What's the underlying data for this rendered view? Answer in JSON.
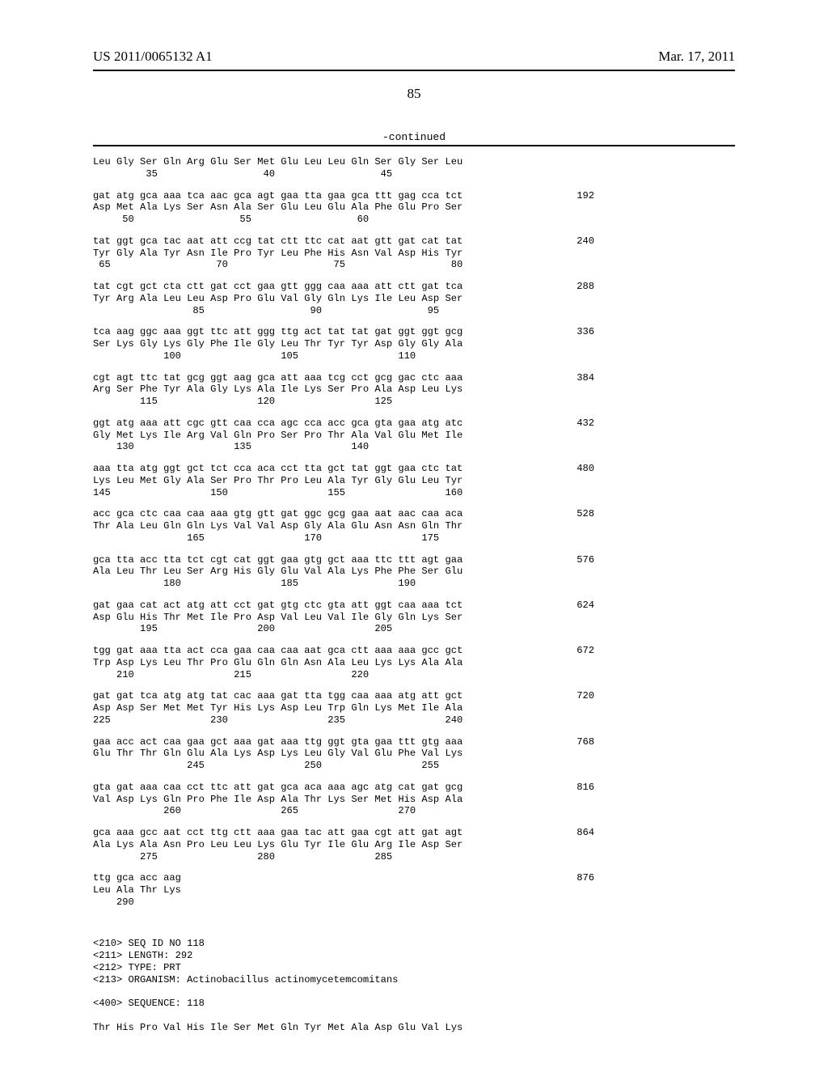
{
  "header": {
    "publication_number": "US 2011/0065132 A1",
    "date": "Mar. 17, 2011"
  },
  "page_number": "85",
  "continued_label": "-continued",
  "sequence_rows": [
    {
      "nuc": "",
      "prot": "Leu Gly Ser Gln Arg Glu Ser Met Glu Leu Leu Gln Ser Gly Ser Leu",
      "pos": "         35                  40                  45",
      "count": ""
    },
    {
      "nuc": "gat atg gca aaa tca aac gca agt gaa tta gaa gca ttt gag cca tct",
      "prot": "Asp Met Ala Lys Ser Asn Ala Ser Glu Leu Glu Ala Phe Glu Pro Ser",
      "pos": "     50                  55                  60",
      "count": "192"
    },
    {
      "nuc": "tat ggt gca tac aat att ccg tat ctt ttc cat aat gtt gat cat tat",
      "prot": "Tyr Gly Ala Tyr Asn Ile Pro Tyr Leu Phe His Asn Val Asp His Tyr",
      "pos": " 65                  70                  75                  80",
      "count": "240"
    },
    {
      "nuc": "tat cgt gct cta ctt gat cct gaa gtt ggg caa aaa att ctt gat tca",
      "prot": "Tyr Arg Ala Leu Leu Asp Pro Glu Val Gly Gln Lys Ile Leu Asp Ser",
      "pos": "                 85                  90                  95",
      "count": "288"
    },
    {
      "nuc": "tca aag ggc aaa ggt ttc att ggg ttg act tat tat gat ggt ggt gcg",
      "prot": "Ser Lys Gly Lys Gly Phe Ile Gly Leu Thr Tyr Tyr Asp Gly Gly Ala",
      "pos": "            100                 105                 110",
      "count": "336"
    },
    {
      "nuc": "cgt agt ttc tat gcg ggt aag gca att aaa tcg cct gcg gac ctc aaa",
      "prot": "Arg Ser Phe Tyr Ala Gly Lys Ala Ile Lys Ser Pro Ala Asp Leu Lys",
      "pos": "        115                 120                 125",
      "count": "384"
    },
    {
      "nuc": "ggt atg aaa att cgc gtt caa cca agc cca acc gca gta gaa atg atc",
      "prot": "Gly Met Lys Ile Arg Val Gln Pro Ser Pro Thr Ala Val Glu Met Ile",
      "pos": "    130                 135                 140",
      "count": "432"
    },
    {
      "nuc": "aaa tta atg ggt gct tct cca aca cct tta gct tat ggt gaa ctc tat",
      "prot": "Lys Leu Met Gly Ala Ser Pro Thr Pro Leu Ala Tyr Gly Glu Leu Tyr",
      "pos": "145                 150                 155                 160",
      "count": "480"
    },
    {
      "nuc": "acc gca ctc caa caa aaa gtg gtt gat ggc gcg gaa aat aac caa aca",
      "prot": "Thr Ala Leu Gln Gln Lys Val Val Asp Gly Ala Glu Asn Asn Gln Thr",
      "pos": "                165                 170                 175",
      "count": "528"
    },
    {
      "nuc": "gca tta acc tta tct cgt cat ggt gaa gtg gct aaa ttc ttt agt gaa",
      "prot": "Ala Leu Thr Leu Ser Arg His Gly Glu Val Ala Lys Phe Phe Ser Glu",
      "pos": "            180                 185                 190",
      "count": "576"
    },
    {
      "nuc": "gat gaa cat act atg att cct gat gtg ctc gta att ggt caa aaa tct",
      "prot": "Asp Glu His Thr Met Ile Pro Asp Val Leu Val Ile Gly Gln Lys Ser",
      "pos": "        195                 200                 205",
      "count": "624"
    },
    {
      "nuc": "tgg gat aaa tta act cca gaa caa caa aat gca ctt aaa aaa gcc gct",
      "prot": "Trp Asp Lys Leu Thr Pro Glu Gln Gln Asn Ala Leu Lys Lys Ala Ala",
      "pos": "    210                 215                 220",
      "count": "672"
    },
    {
      "nuc": "gat gat tca atg atg tat cac aaa gat tta tgg caa aaa atg att gct",
      "prot": "Asp Asp Ser Met Met Tyr His Lys Asp Leu Trp Gln Lys Met Ile Ala",
      "pos": "225                 230                 235                 240",
      "count": "720"
    },
    {
      "nuc": "gaa acc act caa gaa gct aaa gat aaa ttg ggt gta gaa ttt gtg aaa",
      "prot": "Glu Thr Thr Gln Glu Ala Lys Asp Lys Leu Gly Val Glu Phe Val Lys",
      "pos": "                245                 250                 255",
      "count": "768"
    },
    {
      "nuc": "gta gat aaa caa cct ttc att gat gca aca aaa agc atg cat gat gcg",
      "prot": "Val Asp Lys Gln Pro Phe Ile Asp Ala Thr Lys Ser Met His Asp Ala",
      "pos": "            260                 265                 270",
      "count": "816"
    },
    {
      "nuc": "gca aaa gcc aat cct ttg ctt aaa gaa tac att gaa cgt att gat agt",
      "prot": "Ala Lys Ala Asn Pro Leu Leu Lys Glu Tyr Ile Glu Arg Ile Asp Ser",
      "pos": "        275                 280                 285",
      "count": "864"
    },
    {
      "nuc": "ttg gca acc aag",
      "prot": "Leu Ala Thr Lys",
      "pos": "    290",
      "count": "876"
    }
  ],
  "meta": {
    "seq_id": "<210> SEQ ID NO 118",
    "length": "<211> LENGTH: 292",
    "type": "<212> TYPE: PRT",
    "organism": "<213> ORGANISM: Actinobacillus actinomycetemcomitans",
    "sequence_line": "<400> SEQUENCE: 118",
    "protein_start": "Thr His Pro Val His Ile Ser Met Gln Tyr Met Ala Asp Glu Val Lys"
  }
}
